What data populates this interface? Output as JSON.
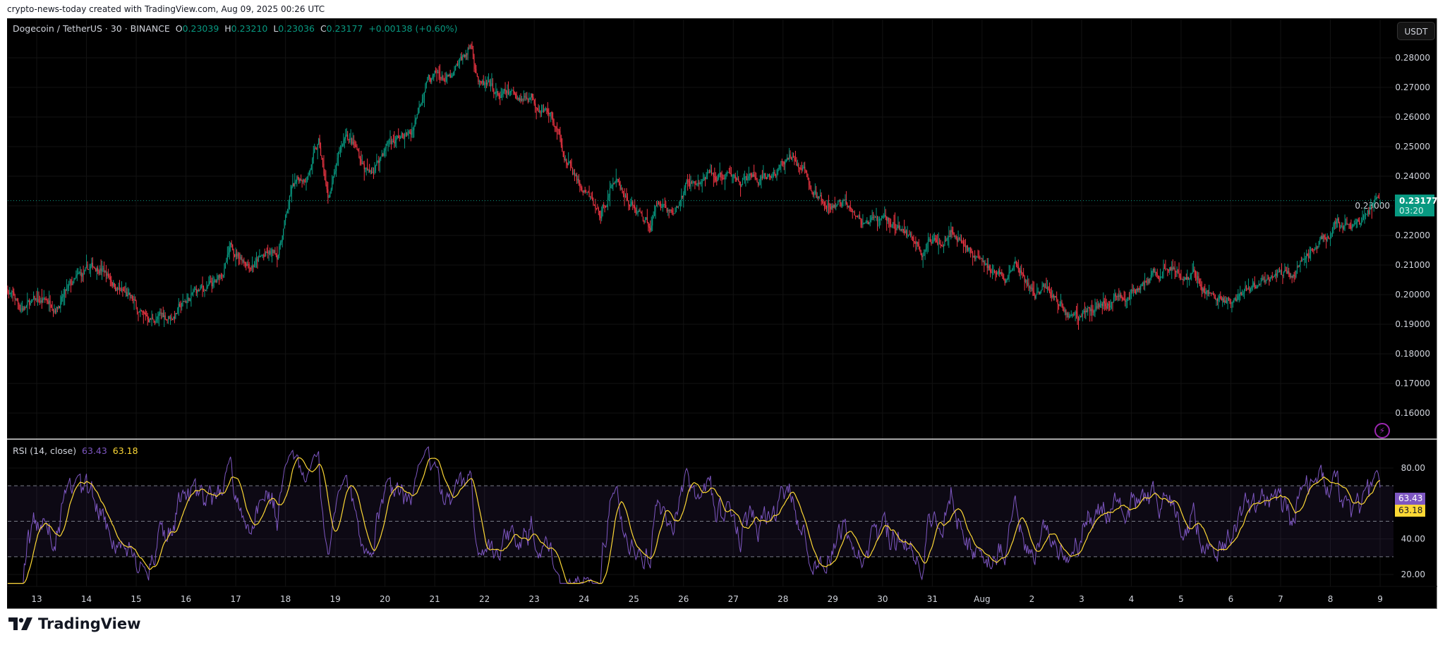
{
  "credit": "crypto-news-today created with TradingView.com, Aug 09, 2025 00:26 UTC",
  "legend": {
    "symbol": "Dogecoin / TetherUS · 30 · BINANCE",
    "o_label": "O",
    "o": "0.23039",
    "h_label": "H",
    "h": "0.23210",
    "l_label": "L",
    "l": "0.23036",
    "c_label": "C",
    "c": "0.23177",
    "change": "+0.00138 (+0.60%)"
  },
  "currency_button": "USDT",
  "last_price": {
    "price": "0.23177",
    "countdown": "03:20"
  },
  "rsi_legend": {
    "title": "RSI (14, close)",
    "rsi": "63.43",
    "ma": "63.18"
  },
  "rsi_labels": {
    "rsi": "63.43",
    "ma": "63.18"
  },
  "footer_logo": "TradingView",
  "icons": {
    "alert": "lightning-bolt-icon",
    "logo": "tradingview-logo-icon"
  },
  "colors": {
    "up": "#089981",
    "down": "#f23645",
    "rsi": "#7e57c2",
    "rsi_ma": "#fdd835",
    "alert": "#9c27b0"
  },
  "chart_data": [
    {
      "type": "candlestick",
      "title": "Dogecoin / TetherUS · 30 · BINANCE",
      "interval": "30",
      "ylim": [
        0.153,
        0.291
      ],
      "y_ticks": [
        "0.28000",
        "0.27000",
        "0.26000",
        "0.25000",
        "0.24000",
        "0.23000",
        "0.22000",
        "0.21000",
        "0.20000",
        "0.19000",
        "0.18000",
        "0.17000",
        "0.16000"
      ],
      "x_ticks": [
        "13",
        "14",
        "15",
        "16",
        "17",
        "18",
        "19",
        "20",
        "21",
        "22",
        "23",
        "24",
        "25",
        "26",
        "27",
        "28",
        "29",
        "30",
        "31",
        "Aug",
        "2",
        "3",
        "4",
        "5",
        "6",
        "7",
        "8",
        "9"
      ],
      "grid": true,
      "last_candle": {
        "open": 0.23039,
        "high": 0.2321,
        "low": 0.23036,
        "close": 0.23177
      },
      "close_path": [
        [
          "2025-07-12T10:00",
          0.202
        ],
        [
          "2025-07-12T15:30",
          0.196
        ],
        [
          "2025-07-13T09:30",
          0.198
        ],
        [
          "2025-07-14T06:30",
          0.21
        ],
        [
          "2025-07-14T21:00",
          0.198
        ],
        [
          "2025-07-15T03:30",
          0.191
        ],
        [
          "2025-07-15T17:00",
          0.193
        ],
        [
          "2025-07-16T04:00",
          0.2
        ],
        [
          "2025-07-16T15:00",
          0.203
        ],
        [
          "2025-07-16T22:00",
          0.215
        ],
        [
          "2025-07-17T07:00",
          0.212
        ],
        [
          "2025-07-17T20:00",
          0.213
        ],
        [
          "2025-07-18T03:00",
          0.235
        ],
        [
          "2025-07-18T09:30",
          0.24
        ],
        [
          "2025-07-18T16:00",
          0.25
        ],
        [
          "2025-07-18T20:30",
          0.232
        ],
        [
          "2025-07-19T05:30",
          0.255
        ],
        [
          "2025-07-19T16:30",
          0.24
        ],
        [
          "2025-07-20T01:30",
          0.252
        ],
        [
          "2025-07-20T12:30",
          0.254
        ],
        [
          "2025-07-20T20:00",
          0.274
        ],
        [
          "2025-07-21T08:30",
          0.272
        ],
        [
          "2025-07-21T17:30",
          0.284
        ],
        [
          "2025-07-21T22:00",
          0.271
        ],
        [
          "2025-07-22T07:00",
          0.266
        ],
        [
          "2025-07-22T22:30",
          0.268
        ],
        [
          "2025-07-23T07:30",
          0.262
        ],
        [
          "2025-07-23T16:00",
          0.245
        ],
        [
          "2025-07-23T23:00",
          0.235
        ],
        [
          "2025-07-24T08:00",
          0.226
        ],
        [
          "2025-07-24T14:30",
          0.24
        ],
        [
          "2025-07-25T01:30",
          0.228
        ],
        [
          "2025-07-25T08:00",
          0.224
        ],
        [
          "2025-07-25T12:30",
          0.233
        ],
        [
          "2025-07-25T19:30",
          0.227
        ],
        [
          "2025-07-26T02:00",
          0.237
        ],
        [
          "2025-07-26T13:00",
          0.239
        ],
        [
          "2025-07-27T07:00",
          0.239
        ],
        [
          "2025-07-27T16:00",
          0.237
        ],
        [
          "2025-07-28T05:00",
          0.247
        ],
        [
          "2025-07-28T14:00",
          0.236
        ],
        [
          "2025-07-28T20:30",
          0.228
        ],
        [
          "2025-07-29T10:00",
          0.231
        ],
        [
          "2025-07-29T16:30",
          0.222
        ],
        [
          "2025-07-30T01:30",
          0.225
        ],
        [
          "2025-07-30T15:00",
          0.219
        ],
        [
          "2025-07-30T19:30",
          0.214
        ],
        [
          "2025-07-31T09:00",
          0.224
        ],
        [
          "2025-07-31T15:30",
          0.218
        ],
        [
          "2025-08-01T00:30",
          0.21
        ],
        [
          "2025-08-01T11:30",
          0.206
        ],
        [
          "2025-08-01T16:00",
          0.21
        ],
        [
          "2025-08-02T01:00",
          0.2
        ],
        [
          "2025-08-02T07:30",
          0.202
        ],
        [
          "2025-08-02T18:30",
          0.193
        ],
        [
          "2025-08-03T01:30",
          0.195
        ],
        [
          "2025-08-03T12:30",
          0.198
        ],
        [
          "2025-08-04T06:00",
          0.203
        ],
        [
          "2025-08-04T21:30",
          0.21
        ],
        [
          "2025-08-05T09:00",
          0.206
        ],
        [
          "2025-08-05T15:30",
          0.199
        ],
        [
          "2025-08-06T05:00",
          0.197
        ],
        [
          "2025-08-06T16:00",
          0.205
        ],
        [
          "2025-08-07T05:30",
          0.206
        ],
        [
          "2025-08-07T14:00",
          0.215
        ],
        [
          "2025-08-08T01:30",
          0.223
        ],
        [
          "2025-08-08T14:30",
          0.222
        ],
        [
          "2025-08-08T21:30",
          0.229
        ],
        [
          "2025-08-09T00:00",
          0.23177
        ]
      ]
    },
    {
      "type": "line",
      "title": "RSI (14, close)",
      "series": [
        {
          "name": "RSI",
          "last": 63.43,
          "color": "#7e57c2"
        },
        {
          "name": "RSI-based MA",
          "last": 63.18,
          "color": "#fdd835"
        }
      ],
      "ylim": [
        13,
        95
      ],
      "y_ticks": [
        "80.00",
        "40.00",
        "20.00"
      ],
      "bands": [
        70,
        50,
        30
      ]
    }
  ]
}
